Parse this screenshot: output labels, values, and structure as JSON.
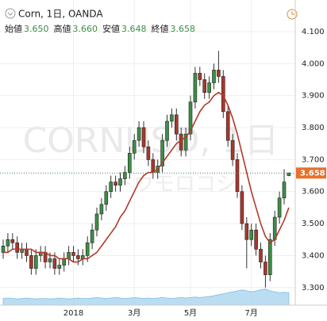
{
  "chart_data": {
    "type": "candlestick",
    "title": "Corn, 1日, OANDA",
    "ohlc_header": [
      {
        "label": "始値",
        "value": "3.650"
      },
      {
        "label": "高値",
        "value": "3.660"
      },
      {
        "label": "安値",
        "value": "3.648"
      },
      {
        "label": "終値",
        "value": "3.658"
      }
    ],
    "watermark": [
      "CORNUSD, 1日",
      "トウモロコシ"
    ],
    "categories": [
      null,
      null,
      null,
      null,
      null,
      null,
      null,
      null,
      null,
      null,
      null,
      null,
      null,
      null,
      null,
      "2018",
      null,
      null,
      null,
      null,
      null,
      null,
      null,
      null,
      null,
      null,
      null,
      null,
      "3月",
      null,
      null,
      null,
      null,
      null,
      null,
      null,
      null,
      null,
      null,
      null,
      "5月",
      null,
      null,
      null,
      null,
      null,
      null,
      null,
      null,
      null,
      null,
      null,
      null,
      "7月",
      null,
      null,
      null,
      null,
      null,
      null,
      null,
      null
    ],
    "open": [
      3.41,
      3.43,
      3.45,
      3.44,
      3.41,
      3.42,
      3.4,
      3.36,
      3.4,
      3.41,
      3.38,
      3.39,
      3.36,
      3.37,
      3.39,
      3.41,
      3.4,
      3.39,
      3.4,
      3.44,
      3.48,
      3.53,
      3.56,
      3.6,
      3.63,
      3.62,
      3.64,
      3.66,
      3.72,
      3.76,
      3.8,
      3.74,
      3.7,
      3.66,
      3.68,
      3.76,
      3.82,
      3.84,
      3.78,
      3.73,
      3.78,
      3.88,
      3.97,
      3.95,
      3.91,
      3.94,
      3.98,
      3.96,
      3.85,
      3.76,
      3.7,
      3.6,
      3.5,
      3.45,
      3.48,
      3.42,
      3.38,
      3.34,
      3.45,
      3.52,
      3.58,
      3.65
    ],
    "high": [
      3.45,
      3.47,
      3.47,
      3.46,
      3.44,
      3.44,
      3.42,
      3.42,
      3.43,
      3.43,
      3.41,
      3.41,
      3.39,
      3.41,
      3.43,
      3.43,
      3.42,
      3.42,
      3.46,
      3.5,
      3.55,
      3.58,
      3.62,
      3.65,
      3.65,
      3.66,
      3.68,
      3.74,
      3.78,
      3.82,
      3.82,
      3.76,
      3.72,
      3.7,
      3.78,
      3.84,
      3.86,
      3.86,
      3.8,
      3.8,
      3.9,
      3.99,
      3.99,
      3.97,
      3.96,
      4.0,
      4.04,
      3.98,
      3.87,
      3.78,
      3.72,
      3.62,
      3.52,
      3.5,
      3.5,
      3.44,
      3.4,
      3.47,
      3.54,
      3.6,
      3.67,
      3.66
    ],
    "low": [
      3.39,
      3.41,
      3.42,
      3.39,
      3.39,
      3.38,
      3.34,
      3.34,
      3.38,
      3.36,
      3.36,
      3.34,
      3.34,
      3.35,
      3.37,
      3.38,
      3.37,
      3.37,
      3.38,
      3.42,
      3.46,
      3.51,
      3.54,
      3.58,
      3.6,
      3.6,
      3.62,
      3.64,
      3.7,
      3.74,
      3.72,
      3.68,
      3.64,
      3.64,
      3.66,
      3.74,
      3.8,
      3.76,
      3.71,
      3.71,
      3.76,
      3.86,
      3.93,
      3.89,
      3.89,
      3.92,
      3.94,
      3.83,
      3.74,
      3.68,
      3.58,
      3.48,
      3.36,
      3.43,
      3.4,
      3.36,
      3.3,
      3.32,
      3.43,
      3.5,
      3.56,
      3.648
    ],
    "close": [
      3.43,
      3.45,
      3.44,
      3.41,
      3.42,
      3.4,
      3.36,
      3.4,
      3.41,
      3.38,
      3.39,
      3.36,
      3.37,
      3.39,
      3.41,
      3.4,
      3.39,
      3.4,
      3.44,
      3.48,
      3.53,
      3.56,
      3.6,
      3.63,
      3.62,
      3.64,
      3.66,
      3.72,
      3.76,
      3.8,
      3.74,
      3.7,
      3.66,
      3.68,
      3.76,
      3.82,
      3.84,
      3.78,
      3.73,
      3.78,
      3.88,
      3.97,
      3.95,
      3.91,
      3.94,
      3.98,
      3.96,
      3.85,
      3.76,
      3.7,
      3.6,
      3.5,
      3.45,
      3.48,
      3.42,
      3.38,
      3.34,
      3.45,
      3.52,
      3.58,
      3.63,
      3.658
    ],
    "up_color": "#3c8f47",
    "down_color": "#a8382c",
    "moving_average": {
      "color": "#b23a2a",
      "values": [
        3.41,
        3.41,
        3.42,
        3.42,
        3.42,
        3.42,
        3.42,
        3.41,
        3.41,
        3.41,
        3.4,
        3.4,
        3.39,
        3.39,
        3.39,
        3.38,
        3.38,
        3.39,
        3.39,
        3.4,
        3.41,
        3.43,
        3.45,
        3.47,
        3.49,
        3.52,
        3.54,
        3.57,
        3.6,
        3.63,
        3.65,
        3.66,
        3.66,
        3.67,
        3.69,
        3.71,
        3.73,
        3.75,
        3.76,
        3.77,
        3.79,
        3.82,
        3.85,
        3.87,
        3.88,
        3.9,
        3.91,
        3.9,
        3.87,
        3.83,
        3.78,
        3.72,
        3.66,
        3.6,
        3.55,
        3.5,
        3.46,
        3.44,
        3.45,
        3.48,
        3.51,
        3.55
      ]
    },
    "volume": {
      "color": "#a9d4ef",
      "vlim": [
        0,
        100
      ],
      "values": [
        14,
        15,
        14,
        13,
        14,
        15,
        14,
        13,
        14,
        14,
        13,
        14,
        15,
        14,
        13,
        14,
        15,
        14,
        14,
        15,
        16,
        15,
        14,
        15,
        16,
        15,
        14,
        15,
        16,
        15,
        14,
        15,
        14,
        15,
        16,
        15,
        14,
        15,
        16,
        15,
        16,
        17,
        16,
        17,
        18,
        20,
        22,
        24,
        26,
        28,
        30,
        32,
        30,
        28,
        30,
        32,
        34,
        30,
        28,
        26,
        27,
        26
      ]
    },
    "last_price": {
      "value": 3.658,
      "label": "3.658"
    },
    "ylim": [
      3.245,
      4.199
    ],
    "yticks": [
      {
        "value": 3.3,
        "label": "3.300"
      },
      {
        "value": 3.4,
        "label": "3.400"
      },
      {
        "value": 3.5,
        "label": "3.500"
      },
      {
        "value": 3.6,
        "label": "3.600"
      },
      {
        "value": 3.7,
        "label": "3.700"
      },
      {
        "value": 3.8,
        "label": "3.800"
      },
      {
        "value": 3.9,
        "label": "3.900"
      },
      {
        "value": 4.0,
        "label": "4.000"
      },
      {
        "value": 4.1,
        "label": "4.100"
      }
    ],
    "grid": true
  }
}
